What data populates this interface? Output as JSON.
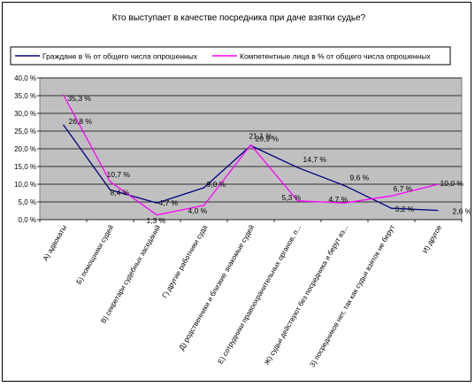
{
  "chart_data": {
    "type": "line",
    "title": "Кто выступает в качестве посредника при даче взятки судье?",
    "xlabel": "",
    "ylabel": "",
    "ylim": [
      0,
      40
    ],
    "y_ticks": [
      "0,0 %",
      "5,0 %",
      "10,0 %",
      "15,0 %",
      "20,0 %",
      "25,0 %",
      "30,0 %",
      "35,0 %",
      "40,0 %"
    ],
    "grid": true,
    "legend_position": "top",
    "plot_background": "#c0c0c0",
    "categories": [
      "А) адвокаты",
      "Б) помощники судей",
      "В) секретари судебных заседаний",
      "Г) другие работники суда",
      "Д) родственники и близкие знакомые судей",
      "Е) сотрудники правоохранительных органов, п...",
      "Ж) судьи действуют без посредника и берут вз...",
      "З) посредников нет, так как судьи взяток не берут",
      "И) другое"
    ],
    "series": [
      {
        "name": "Граждане в % от общего числа опрошенных",
        "color": "#000080",
        "values": [
          26.8,
          8.4,
          4.7,
          9.0,
          20.9,
          14.7,
          9.6,
          3.2,
          2.6
        ],
        "labels": [
          "26,8 %",
          "8,4 %",
          "4,7 %",
          "9,0 %",
          "20,9 %",
          "14,7 %",
          "9,6 %",
          "3,2 %",
          "2,6 %"
        ]
      },
      {
        "name": "Компетентные лица в % от общего числа опрошенных",
        "color": "#ff00ff",
        "values": [
          35.3,
          10.7,
          1.3,
          4.0,
          21.1,
          5.3,
          4.7,
          6.7,
          10.0
        ],
        "labels": [
          "35,3 %",
          "10,7 %",
          "1,3 %",
          "4,0 %",
          "21,1 %",
          "5,3 %",
          "4,7 %",
          "6,7 %",
          "10,0 %"
        ]
      }
    ]
  }
}
